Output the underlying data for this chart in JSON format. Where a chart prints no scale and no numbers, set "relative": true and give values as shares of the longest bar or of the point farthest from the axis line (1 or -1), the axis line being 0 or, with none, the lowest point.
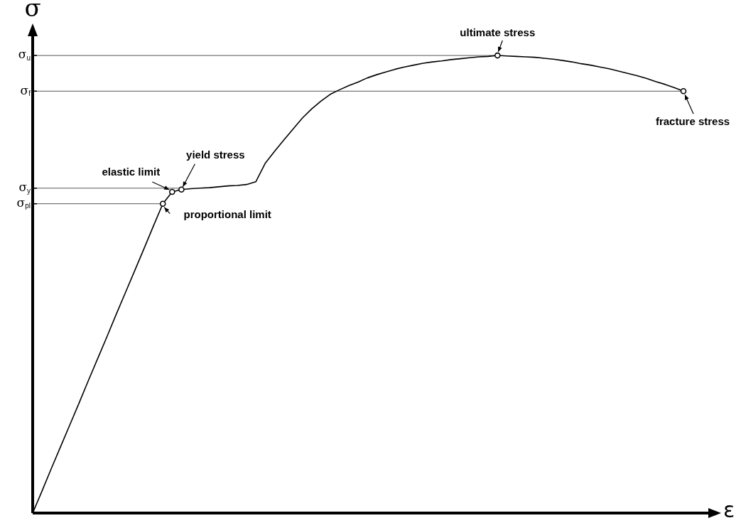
{
  "chart_data": {
    "type": "line",
    "relative": true,
    "xlabel": "ε",
    "ylabel": "σ",
    "grid": false,
    "legend": false,
    "categories": [
      null,
      null,
      null,
      null,
      null,
      null,
      null,
      null,
      null,
      null,
      null,
      null,
      null,
      null,
      null,
      null,
      null,
      null,
      null,
      null,
      null,
      null,
      null,
      null,
      null,
      null,
      null,
      null,
      null,
      null,
      null,
      null,
      null,
      null,
      null,
      null,
      null,
      null,
      null,
      null,
      null,
      null,
      null,
      null,
      null,
      null,
      null,
      null,
      null,
      null,
      null,
      null,
      null,
      null,
      null,
      null,
      null,
      null,
      null,
      null,
      null,
      null,
      null,
      null,
      null,
      null,
      null,
      null,
      null,
      null,
      null
    ],
    "series": [
      {
        "color": "#000000",
        "values": [
          0,
          0.048,
          0.097,
          0.145,
          0.193,
          0.241,
          0.29,
          0.338,
          0.386,
          0.435,
          0.483,
          0.531,
          0.579,
          0.628,
          0.676,
          0.702,
          0.707,
          0.709,
          0.71,
          0.711,
          0.713,
          0.715,
          0.716,
          0.718,
          0.724,
          0.764,
          0.79,
          0.815,
          0.839,
          0.863,
          0.883,
          0.9,
          0.915,
          0.925,
          0.934,
          0.942,
          0.951,
          0.958,
          0.964,
          0.97,
          0.975,
          0.979,
          0.983,
          0.986,
          0.988,
          0.991,
          0.993,
          0.995,
          0.997,
          0.998,
          1,
          0.999,
          0.998,
          0.997,
          0.996,
          0.994,
          0.992,
          0.989,
          0.986,
          0.982,
          0.979,
          0.975,
          0.971,
          0.966,
          0.961,
          0.956,
          0.95,
          0.943,
          0.937,
          0.93,
          0.922
        ]
      }
    ],
    "ref_lines": [
      {
        "axis": "y",
        "value": 0.676,
        "label": "σ$_{pl}$",
        "color": "#555555"
      },
      {
        "axis": "y",
        "value": 0.71,
        "label": "σ$_{y}$",
        "color": "#555555"
      },
      {
        "axis": "y",
        "value": 0.922,
        "label": "σ$_{f}$",
        "color": "#555555"
      },
      {
        "axis": "y",
        "value": 1,
        "label": "σ$_{u}$",
        "color": "#555555"
      }
    ],
    "annotations": [
      "proportional limit",
      "elastic limit",
      {
        "text": "yield stress",
        "y": 0.707
      },
      {
        "text": "ultimate stress",
        "y": 1
      },
      "fracture stress"
    ]
  }
}
